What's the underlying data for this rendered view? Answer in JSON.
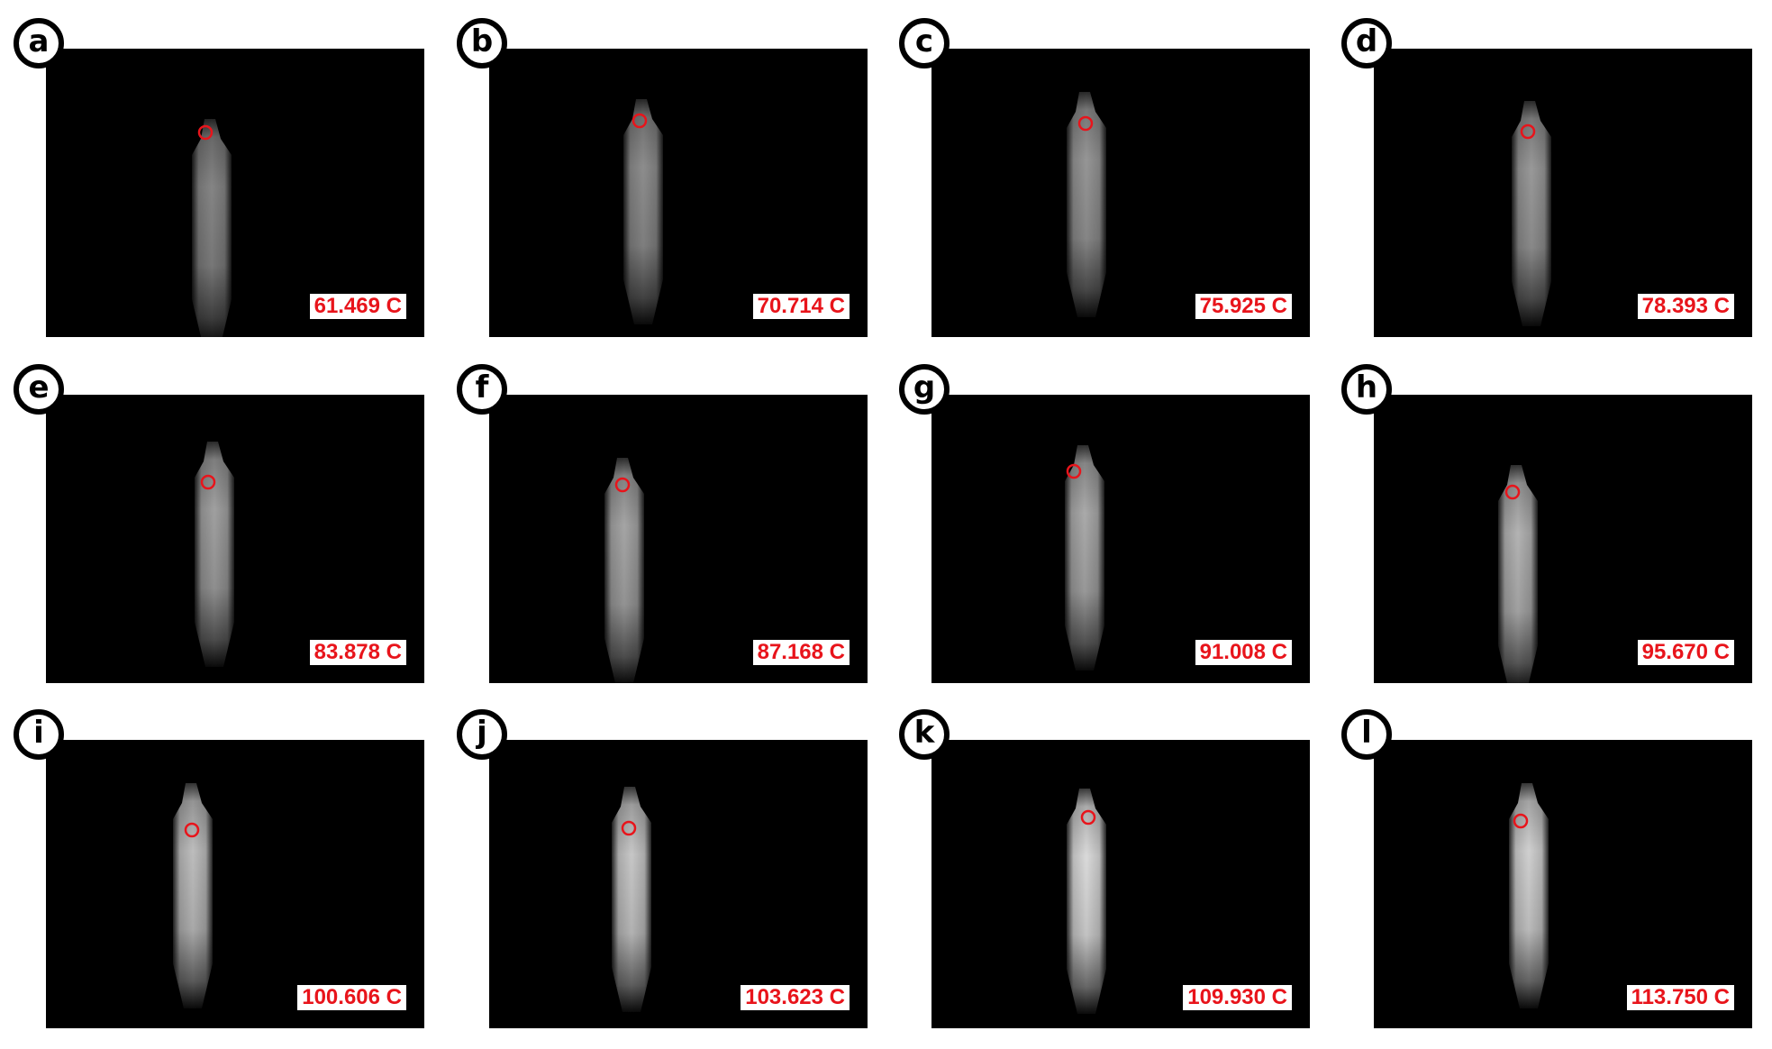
{
  "panels": [
    {
      "label": "a",
      "temperature": "61.469 C",
      "brightness": 0.55
    },
    {
      "label": "b",
      "temperature": "70.714 C",
      "brightness": 0.58
    },
    {
      "label": "c",
      "temperature": "75.925 C",
      "brightness": 0.62
    },
    {
      "label": "d",
      "temperature": "78.393 C",
      "brightness": 0.63
    },
    {
      "label": "e",
      "temperature": "83.878 C",
      "brightness": 0.66
    },
    {
      "label": "f",
      "temperature": "87.168 C",
      "brightness": 0.68
    },
    {
      "label": "g",
      "temperature": "91.008 C",
      "brightness": 0.7
    },
    {
      "label": "h",
      "temperature": "95.670 C",
      "brightness": 0.74
    },
    {
      "label": "i",
      "temperature": "100.606 C",
      "brightness": 0.78
    },
    {
      "label": "j",
      "temperature": "103.623 C",
      "brightness": 0.82
    },
    {
      "label": "k",
      "temperature": "109.930 C",
      "brightness": 0.9
    },
    {
      "label": "l",
      "temperature": "113.750 C",
      "brightness": 0.86
    }
  ],
  "colors": {
    "background": "#000000",
    "marker": "#e8141b",
    "temperature_text": "#e8141b",
    "badge_border": "#000000"
  },
  "icons": {
    "marker": "circle-marker-icon"
  }
}
